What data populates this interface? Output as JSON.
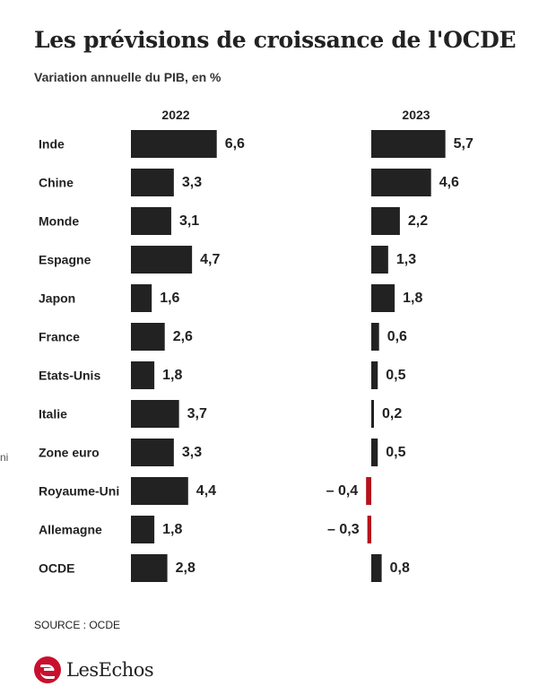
{
  "title": "Les prévisions de croissance de l'OCDE",
  "subtitle": "Variation annuelle du PIB, en %",
  "edge_fragment": "ni",
  "source": "SOURCE : OCDE",
  "logo_text": "LesEchos",
  "colors": {
    "bar": "#222222",
    "negative": "#b5121b",
    "text": "#222222"
  },
  "chart_data": {
    "type": "bar",
    "orientation": "horizontal",
    "categories": [
      "Inde",
      "Chine",
      "Monde",
      "Espagne",
      "Japon",
      "France",
      "Etats-Unis",
      "Italie",
      "Zone euro",
      "Royaume-Uni",
      "Allemagne",
      "OCDE"
    ],
    "series": [
      {
        "name": "2022",
        "values": [
          6.6,
          3.3,
          3.1,
          4.7,
          1.6,
          2.6,
          1.8,
          3.7,
          3.3,
          4.4,
          1.8,
          2.8
        ],
        "labels": [
          "6,6",
          "3,3",
          "3,1",
          "4,7",
          "1,6",
          "2,6",
          "1,8",
          "3,7",
          "3,3",
          "4,4",
          "1,8",
          "2,8"
        ]
      },
      {
        "name": "2023",
        "values": [
          5.7,
          4.6,
          2.2,
          1.3,
          1.8,
          0.6,
          0.5,
          0.2,
          0.5,
          -0.4,
          -0.3,
          0.8
        ],
        "labels": [
          "5,7",
          "4,6",
          "2,2",
          "1,3",
          "1,8",
          "0,6",
          "0,5",
          "0,2",
          "0,5",
          "– 0,4",
          "– 0,3",
          "0,8"
        ]
      }
    ],
    "title": "Les prévisions de croissance de l'OCDE",
    "subtitle": "Variation annuelle du PIB, en %",
    "grid": false,
    "legend": "none"
  }
}
